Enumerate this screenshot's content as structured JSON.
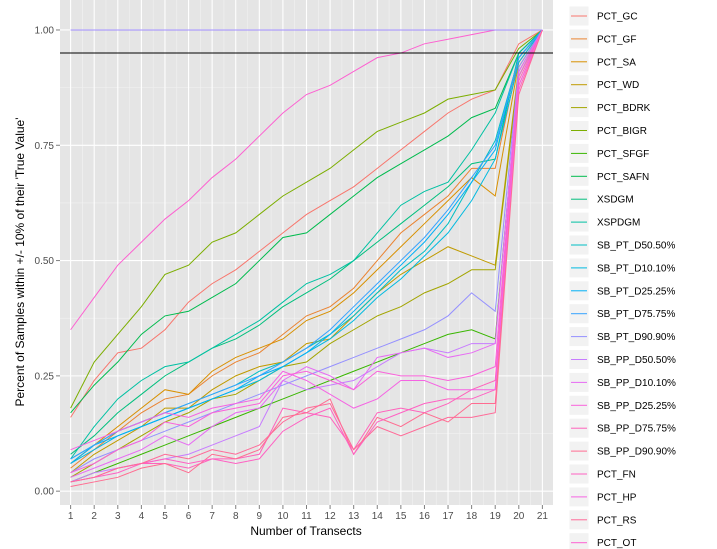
{
  "chart_data": {
    "type": "line",
    "title": "",
    "xlabel": "Number of Transects",
    "ylabel": "Percent of Samples within +/- 10% of their 'True Value'",
    "x": [
      1,
      2,
      3,
      4,
      5,
      6,
      7,
      8,
      9,
      10,
      11,
      12,
      13,
      14,
      15,
      16,
      17,
      18,
      19,
      20,
      21
    ],
    "xlim": [
      0.55,
      21.45
    ],
    "ylim": [
      -0.03,
      1.065
    ],
    "y_ticks": [
      0.0,
      0.25,
      0.5,
      0.75,
      1.0
    ],
    "y_tick_labels": [
      "0.00",
      "0.25",
      "0.50",
      "0.75",
      "1.00"
    ],
    "x_tick_labels": [
      "1",
      "2",
      "3",
      "4",
      "5",
      "6",
      "7",
      "8",
      "9",
      "10",
      "11",
      "12",
      "13",
      "14",
      "15",
      "16",
      "17",
      "18",
      "19",
      "20",
      "21"
    ],
    "reference_line": {
      "y": 0.95,
      "color": "#000000"
    },
    "grid": true,
    "legend_position": "right",
    "series": [
      {
        "name": "PCT_GC",
        "color": "#F8766D",
        "values": [
          0.16,
          0.24,
          0.3,
          0.31,
          0.35,
          0.41,
          0.45,
          0.48,
          0.52,
          0.56,
          0.6,
          0.63,
          0.66,
          0.7,
          0.74,
          0.78,
          0.82,
          0.85,
          0.87,
          0.97,
          1.0
        ]
      },
      {
        "name": "PCT_GF",
        "color": "#EA8331",
        "values": [
          0.05,
          0.09,
          0.13,
          0.17,
          0.2,
          0.21,
          0.25,
          0.28,
          0.3,
          0.34,
          0.38,
          0.4,
          0.44,
          0.5,
          0.56,
          0.6,
          0.64,
          0.7,
          0.7,
          0.94,
          1.0
        ]
      },
      {
        "name": "PCT_SA",
        "color": "#D89000",
        "values": [
          0.06,
          0.1,
          0.14,
          0.18,
          0.22,
          0.21,
          0.26,
          0.29,
          0.31,
          0.33,
          0.37,
          0.39,
          0.43,
          0.48,
          0.53,
          0.58,
          0.63,
          0.68,
          0.64,
          0.93,
          1.0
        ]
      },
      {
        "name": "PCT_WD",
        "color": "#C09B00",
        "values": [
          0.04,
          0.08,
          0.11,
          0.14,
          0.18,
          0.18,
          0.22,
          0.25,
          0.27,
          0.28,
          0.32,
          0.33,
          0.38,
          0.43,
          0.47,
          0.5,
          0.53,
          0.51,
          0.49,
          0.92,
          1.0
        ]
      },
      {
        "name": "PCT_BDRK",
        "color": "#A3A500",
        "values": [
          0.03,
          0.06,
          0.09,
          0.12,
          0.15,
          0.17,
          0.2,
          0.21,
          0.24,
          0.27,
          0.28,
          0.32,
          0.35,
          0.38,
          0.4,
          0.43,
          0.45,
          0.48,
          0.48,
          0.91,
          1.0
        ]
      },
      {
        "name": "PCT_BIGR",
        "color": "#7CAE00",
        "values": [
          0.18,
          0.28,
          0.34,
          0.4,
          0.47,
          0.49,
          0.54,
          0.56,
          0.6,
          0.64,
          0.67,
          0.7,
          0.74,
          0.78,
          0.8,
          0.82,
          0.85,
          0.86,
          0.87,
          0.96,
          1.0
        ]
      },
      {
        "name": "PCT_SFGF",
        "color": "#39B600",
        "values": [
          0.02,
          0.04,
          0.06,
          0.08,
          0.1,
          0.12,
          0.14,
          0.16,
          0.18,
          0.2,
          0.22,
          0.24,
          0.26,
          0.28,
          0.3,
          0.32,
          0.34,
          0.35,
          0.33,
          0.9,
          1.0
        ]
      },
      {
        "name": "PCT_SAFN",
        "color": "#00BB4E",
        "values": [
          0.17,
          0.23,
          0.28,
          0.34,
          0.38,
          0.39,
          0.42,
          0.45,
          0.5,
          0.55,
          0.56,
          0.6,
          0.64,
          0.68,
          0.71,
          0.74,
          0.77,
          0.81,
          0.83,
          0.95,
          1.0
        ]
      },
      {
        "name": "XSDGM",
        "color": "#00BF7D",
        "values": [
          0.08,
          0.12,
          0.17,
          0.21,
          0.25,
          0.28,
          0.31,
          0.33,
          0.36,
          0.4,
          0.43,
          0.46,
          0.5,
          0.54,
          0.58,
          0.62,
          0.66,
          0.71,
          0.72,
          0.95,
          1.0
        ]
      },
      {
        "name": "XSPDGM",
        "color": "#00C1A3",
        "values": [
          0.07,
          0.14,
          0.2,
          0.24,
          0.27,
          0.28,
          0.31,
          0.34,
          0.37,
          0.41,
          0.45,
          0.47,
          0.5,
          0.56,
          0.62,
          0.65,
          0.67,
          0.74,
          0.82,
          0.95,
          1.0
        ]
      },
      {
        "name": "SB_PT_D50.50%",
        "color": "#00BFC4",
        "values": [
          0.07,
          0.1,
          0.13,
          0.15,
          0.17,
          0.19,
          0.21,
          0.23,
          0.26,
          0.28,
          0.31,
          0.34,
          0.38,
          0.43,
          0.48,
          0.52,
          0.58,
          0.67,
          0.76,
          0.94,
          1.0
        ]
      },
      {
        "name": "SB_PT_D10.10%",
        "color": "#00BAE0",
        "values": [
          0.06,
          0.09,
          0.12,
          0.14,
          0.16,
          0.18,
          0.2,
          0.22,
          0.24,
          0.27,
          0.3,
          0.33,
          0.37,
          0.42,
          0.46,
          0.51,
          0.56,
          0.63,
          0.72,
          0.93,
          1.0
        ]
      },
      {
        "name": "SB_PT_D25.25%",
        "color": "#00B0F6",
        "values": [
          0.06,
          0.1,
          0.12,
          0.14,
          0.16,
          0.18,
          0.2,
          0.22,
          0.25,
          0.27,
          0.3,
          0.34,
          0.39,
          0.44,
          0.49,
          0.54,
          0.6,
          0.67,
          0.74,
          0.94,
          1.0
        ]
      },
      {
        "name": "SB_PT_D75.75%",
        "color": "#35A2FF",
        "values": [
          0.07,
          0.1,
          0.13,
          0.15,
          0.17,
          0.19,
          0.21,
          0.23,
          0.25,
          0.28,
          0.31,
          0.35,
          0.4,
          0.45,
          0.5,
          0.55,
          0.61,
          0.68,
          0.75,
          0.94,
          1.0
        ]
      },
      {
        "name": "SB_PT_D90.90%",
        "color": "#9590FF",
        "values": [
          0.04,
          0.07,
          0.09,
          0.11,
          0.13,
          0.15,
          0.17,
          0.19,
          0.21,
          0.23,
          0.25,
          0.27,
          0.29,
          0.31,
          0.33,
          0.35,
          0.38,
          0.43,
          0.39,
          0.92,
          1.0
        ]
      },
      {
        "name": "SB_PP_D50.50%",
        "color": "#C77CFF",
        "values": [
          0.02,
          0.04,
          0.05,
          0.06,
          0.07,
          0.08,
          0.1,
          0.12,
          0.14,
          0.24,
          0.22,
          0.23,
          0.24,
          0.27,
          0.3,
          0.31,
          0.3,
          0.32,
          0.32,
          0.91,
          1.0
        ]
      },
      {
        "name": "SB_PP_D10.10%",
        "color": "#E76BF3",
        "values": [
          0.03,
          0.05,
          0.07,
          0.09,
          0.12,
          0.1,
          0.14,
          0.17,
          0.18,
          0.24,
          0.27,
          0.25,
          0.22,
          0.29,
          0.3,
          0.31,
          0.29,
          0.3,
          0.32,
          0.91,
          1.0
        ]
      },
      {
        "name": "SB_PP_D25.25%",
        "color": "#FA62DB",
        "values": [
          0.04,
          0.06,
          0.09,
          0.11,
          0.15,
          0.14,
          0.17,
          0.18,
          0.19,
          0.25,
          0.26,
          0.24,
          0.22,
          0.26,
          0.25,
          0.25,
          0.24,
          0.25,
          0.27,
          0.9,
          1.0
        ]
      },
      {
        "name": "SB_PP_D75.75%",
        "color": "#FF62BC",
        "values": [
          0.02,
          0.03,
          0.05,
          0.06,
          0.06,
          0.05,
          0.07,
          0.07,
          0.08,
          0.18,
          0.17,
          0.16,
          0.09,
          0.17,
          0.18,
          0.17,
          0.19,
          0.22,
          0.24,
          0.89,
          1.0
        ]
      },
      {
        "name": "SB_PP_D90.90%",
        "color": "#FF6C91",
        "values": [
          0.01,
          0.02,
          0.03,
          0.05,
          0.06,
          0.04,
          0.08,
          0.07,
          0.09,
          0.16,
          0.17,
          0.2,
          0.08,
          0.16,
          0.14,
          0.17,
          0.15,
          0.19,
          0.19,
          0.88,
          1.0
        ]
      },
      {
        "name": "PCT_FN",
        "color": "#FF61C3",
        "values": [
          0.02,
          0.03,
          0.04,
          0.06,
          0.07,
          0.06,
          0.07,
          0.06,
          0.07,
          0.13,
          0.16,
          0.18,
          0.08,
          0.15,
          0.17,
          0.19,
          0.2,
          0.2,
          0.22,
          0.87,
          1.0
        ]
      },
      {
        "name": "PCT_HP",
        "color": "#F564E3",
        "values": [
          0.09,
          0.11,
          0.13,
          0.15,
          0.17,
          0.16,
          0.18,
          0.19,
          0.2,
          0.26,
          0.24,
          0.21,
          0.18,
          0.2,
          0.24,
          0.24,
          0.22,
          0.22,
          0.22,
          0.88,
          1.0
        ]
      },
      {
        "name": "PCT_RS",
        "color": "#FF6A98",
        "values": [
          0.02,
          0.03,
          0.05,
          0.06,
          0.08,
          0.07,
          0.09,
          0.08,
          0.1,
          0.15,
          0.18,
          0.19,
          0.09,
          0.14,
          0.12,
          0.14,
          0.16,
          0.16,
          0.17,
          0.86,
          1.0
        ]
      },
      {
        "name": "PCT_OT",
        "color": "#FD61D1",
        "values": [
          0.35,
          0.42,
          0.49,
          0.54,
          0.59,
          0.63,
          0.68,
          0.72,
          0.77,
          0.82,
          0.86,
          0.88,
          0.91,
          0.94,
          0.95,
          0.97,
          0.98,
          0.99,
          1.0,
          1.0,
          1.0
        ]
      },
      {
        "name": "",
        "color": "#9F8CFF",
        "values": [
          1.0,
          1.0,
          1.0,
          1.0,
          1.0,
          1.0,
          1.0,
          1.0,
          1.0,
          1.0,
          1.0,
          1.0,
          1.0,
          1.0,
          1.0,
          1.0,
          1.0,
          1.0,
          1.0,
          1.0,
          1.0
        ]
      }
    ],
    "legend_entries": [
      "PCT_GC",
      "PCT_GF",
      "PCT_SA",
      "PCT_WD",
      "PCT_BDRK",
      "PCT_BIGR",
      "PCT_SFGF",
      "PCT_SAFN",
      "XSDGM",
      "XSPDGM",
      "SB_PT_D50.50%",
      "SB_PT_D10.10%",
      "SB_PT_D25.25%",
      "SB_PT_D75.75%",
      "SB_PT_D90.90%",
      "SB_PP_D50.50%",
      "SB_PP_D10.10%",
      "SB_PP_D25.25%",
      "SB_PP_D75.75%",
      "SB_PP_D90.90%",
      "PCT_FN",
      "PCT_HP",
      "PCT_RS",
      "PCT_OT"
    ],
    "legend_colors": [
      "#F8766D",
      "#EA8331",
      "#D89000",
      "#C09B00",
      "#A3A500",
      "#7CAE00",
      "#39B600",
      "#00BB4E",
      "#00BF7D",
      "#00C1A3",
      "#00BFC4",
      "#00BAE0",
      "#00B0F6",
      "#35A2FF",
      "#9590FF",
      "#C77CFF",
      "#E76BF3",
      "#FA62DB",
      "#FF62BC",
      "#FF6C91",
      "#FF61C3",
      "#F564E3",
      "#FF6A98",
      "#FD61D1"
    ]
  }
}
